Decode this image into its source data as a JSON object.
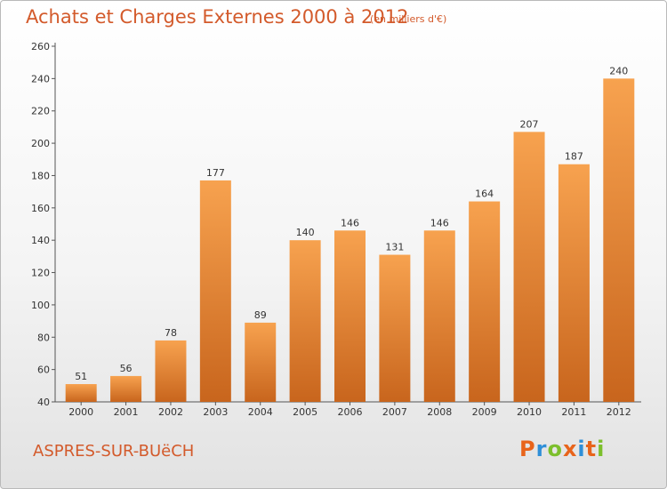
{
  "header": {
    "title": "Achats et Charges Externes 2000 à 2012",
    "subtitle": "(en milliers d'€)"
  },
  "footer": {
    "commune": "ASPRES-SUR-BUëCH",
    "logo_text": "Proxiti",
    "logo_colors": [
      "#e8641b",
      "#2f8fd8",
      "#7cbf2c",
      "#e8641b",
      "#2f8fd8",
      "#e8641b",
      "#7cbf2c"
    ]
  },
  "colors": {
    "bar_light": "#f7a24f",
    "bar_dark": "#c8651d",
    "title": "#d35a2b"
  },
  "chart_data": {
    "type": "bar",
    "categories": [
      "2000",
      "2001",
      "2002",
      "2003",
      "2004",
      "2005",
      "2006",
      "2007",
      "2008",
      "2009",
      "2010",
      "2011",
      "2012"
    ],
    "values": [
      51,
      56,
      78,
      177,
      89,
      140,
      146,
      131,
      146,
      164,
      207,
      187,
      240
    ],
    "title": "Achats et Charges Externes 2000 à 2012",
    "subtitle": "(en milliers d'€)",
    "xlabel": "",
    "ylabel": "",
    "ylim": [
      40,
      260
    ],
    "yticks": [
      40,
      60,
      80,
      100,
      120,
      140,
      160,
      180,
      200,
      220,
      240,
      260
    ],
    "grid": false,
    "data_labels": true
  }
}
